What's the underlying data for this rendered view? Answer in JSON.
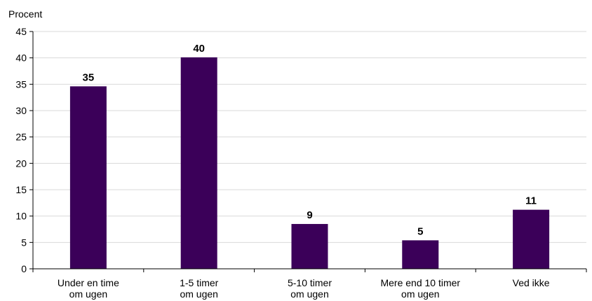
{
  "chart_data": {
    "type": "bar",
    "ylabel": "Procent",
    "xlabel": "",
    "title": "",
    "ylim": [
      0,
      45
    ],
    "yticks": [
      0,
      5,
      10,
      15,
      20,
      25,
      30,
      35,
      40,
      45
    ],
    "grid": true,
    "categories": [
      [
        "Under en time",
        "om ugen"
      ],
      [
        "1-5 timer",
        "om ugen"
      ],
      [
        "5-10 timer",
        "om ugen"
      ],
      [
        "Mere end 10 timer",
        "om ugen"
      ],
      [
        "Ved ikke"
      ]
    ],
    "values": [
      34.6,
      40.1,
      8.5,
      5.4,
      11.2
    ],
    "data_labels": [
      "35",
      "40",
      "9",
      "5",
      "11"
    ],
    "bar_color": "#3b0059",
    "grid_color": "#d9d9d9"
  }
}
